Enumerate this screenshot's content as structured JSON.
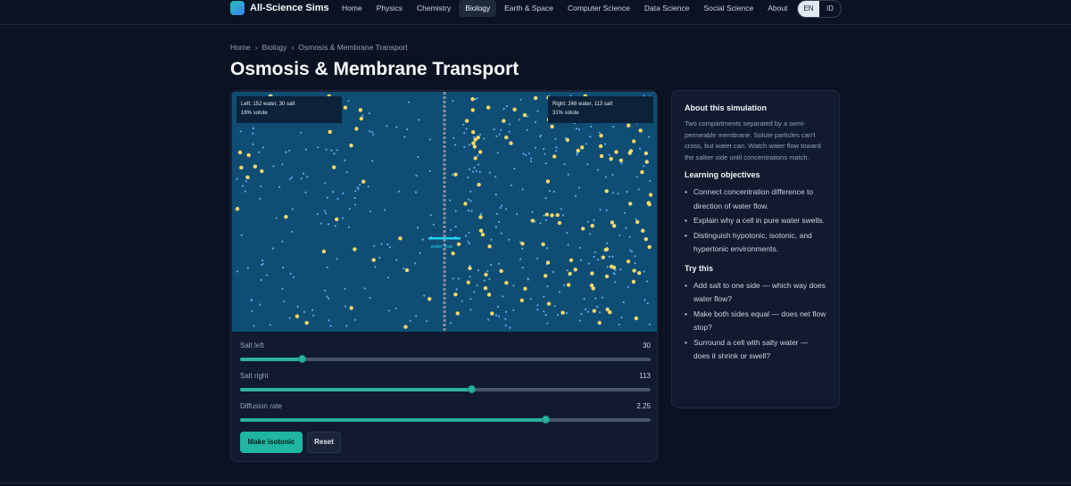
{
  "brand": {
    "name": "All-Science Sims",
    "logo_icon": "flask-logo-icon"
  },
  "nav": {
    "items": [
      "Home",
      "Physics",
      "Chemistry",
      "Biology",
      "Earth & Space",
      "Computer Science",
      "Data Science",
      "Social Science",
      "About"
    ],
    "active": "Biology"
  },
  "lang": {
    "options": [
      "EN",
      "ID"
    ],
    "active": "EN"
  },
  "breadcrumb": {
    "items": [
      "Home",
      "Biology",
      "Osmosis & Membrane Transport"
    ],
    "separator": "›"
  },
  "page": {
    "title": "Osmosis & Membrane Transport"
  },
  "sim": {
    "left_readout": {
      "line1": "Left: 152 water, 30 salt",
      "line2": "16% solute"
    },
    "right_readout": {
      "line1": "Right: 248 water, 113 salt",
      "line2": "31% solute"
    },
    "flow_label": "water flow",
    "left_water": 152,
    "left_salt": 30,
    "right_water": 248,
    "right_salt": 113,
    "colors": {
      "background": "#0f4d74",
      "water": "#5aa9f0",
      "salt": "#f5d96a",
      "membrane": "#8a8f98",
      "flow_arrow": "#22d3ee"
    }
  },
  "controls": {
    "salt_left": {
      "label": "Salt left",
      "value": "30",
      "fraction": 0.15
    },
    "salt_right": {
      "label": "Salt right",
      "value": "113",
      "fraction": 0.565
    },
    "diffusion": {
      "label": "Diffusion rate",
      "value": "2.25",
      "fraction": 0.745
    }
  },
  "buttons": {
    "make_isotonic": "Make isotonic",
    "reset": "Reset"
  },
  "about": {
    "title": "About this simulation",
    "description": "Two compartments separated by a semi-permeable membrane. Solute particles can't cross, but water can. Watch water flow toward the saltier side until concentrations match.",
    "objectives_title": "Learning objectives",
    "objectives": [
      "Connect concentration difference to direction of water flow.",
      "Explain why a cell in pure water swells.",
      "Distinguish hypotonic, isotonic, and hypertonic environments."
    ],
    "try_title": "Try this",
    "try": [
      "Add salt to one side — which way does water flow?",
      "Make both sides equal — does net flow stop?",
      "Surround a cell with salty water — does it shrink or swell?"
    ]
  }
}
